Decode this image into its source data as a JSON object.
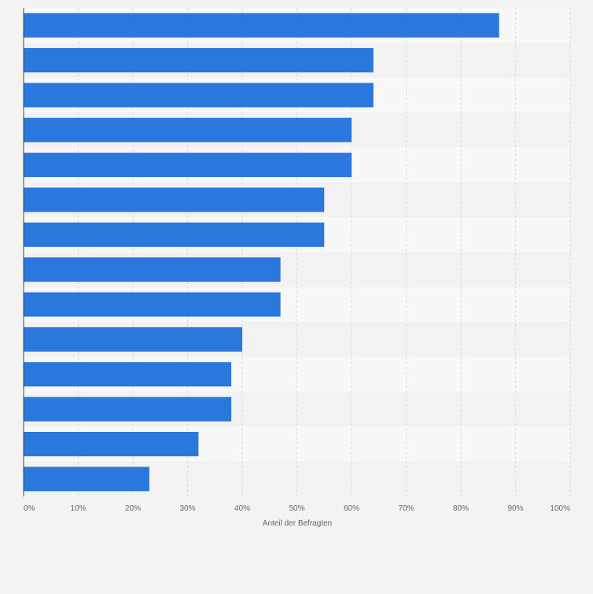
{
  "chart_data": {
    "type": "bar",
    "orientation": "horizontal",
    "title": "",
    "xlabel": "Anteil der Befragten",
    "ylabel": "",
    "xlim": [
      0,
      100
    ],
    "x_ticks": [
      0,
      10,
      20,
      30,
      40,
      50,
      60,
      70,
      80,
      90,
      100
    ],
    "x_tick_labels": [
      "0%",
      "10%",
      "20%",
      "30%",
      "40%",
      "50%",
      "60%",
      "70%",
      "80%",
      "90%",
      "100%"
    ],
    "categories": [
      "",
      "",
      "",
      "",
      "",
      "",
      "",
      "",
      "",
      "",
      "",
      "",
      "",
      ""
    ],
    "values": [
      87,
      64,
      64,
      60,
      60,
      55,
      55,
      47,
      47,
      40,
      38,
      38,
      32,
      23
    ],
    "grid": true,
    "legend": "none",
    "colors": {
      "bar": "#2a78dd",
      "band_light": "#f8f8f8",
      "band_dark": "#f2f2f2",
      "grid": "#d9d9d9",
      "axis": "#444444",
      "tick_text": "#666666"
    }
  }
}
